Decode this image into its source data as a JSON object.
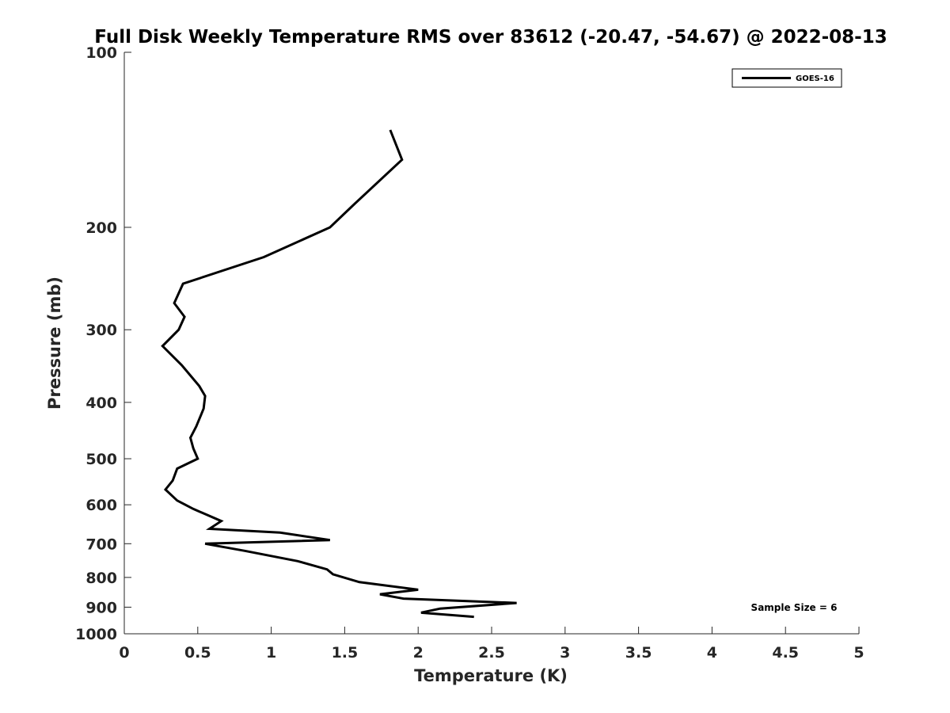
{
  "chart_data": {
    "type": "line",
    "title": "Full Disk Weekly Temperature RMS over 83612 (-20.47, -54.67) @ 2022-08-13",
    "xlabel": "Temperature (K)",
    "ylabel": "Pressure (mb)",
    "xlim": [
      0,
      5
    ],
    "ylim": [
      100,
      1000
    ],
    "y_scale": "log",
    "y_reversed": true,
    "x_ticks": [
      0,
      0.5,
      1,
      1.5,
      2,
      2.5,
      3,
      3.5,
      4,
      4.5,
      5
    ],
    "x_tick_labels": [
      "0",
      "0.5",
      "1",
      "1.5",
      "2",
      "2.5",
      "3",
      "3.5",
      "4",
      "4.5",
      "5"
    ],
    "y_ticks": [
      100,
      200,
      300,
      400,
      500,
      600,
      700,
      800,
      900,
      1000
    ],
    "y_tick_labels": [
      "100",
      "200",
      "300",
      "400",
      "500",
      "600",
      "700",
      "800",
      "900",
      "1000"
    ],
    "grid": false,
    "legend_position": "top-right",
    "annotation": "Sample Size = 6",
    "series": [
      {
        "name": "GOES-16",
        "color": "#000000",
        "points": [
          {
            "x": 1.81,
            "p": 136
          },
          {
            "x": 1.89,
            "p": 153
          },
          {
            "x": 1.57,
            "p": 182
          },
          {
            "x": 1.4,
            "p": 200
          },
          {
            "x": 0.95,
            "p": 225
          },
          {
            "x": 0.4,
            "p": 250
          },
          {
            "x": 0.34,
            "p": 270
          },
          {
            "x": 0.41,
            "p": 285
          },
          {
            "x": 0.37,
            "p": 300
          },
          {
            "x": 0.26,
            "p": 320
          },
          {
            "x": 0.39,
            "p": 345
          },
          {
            "x": 0.51,
            "p": 375
          },
          {
            "x": 0.55,
            "p": 390
          },
          {
            "x": 0.54,
            "p": 410
          },
          {
            "x": 0.49,
            "p": 440
          },
          {
            "x": 0.45,
            "p": 460
          },
          {
            "x": 0.47,
            "p": 480
          },
          {
            "x": 0.5,
            "p": 500
          },
          {
            "x": 0.36,
            "p": 520
          },
          {
            "x": 0.33,
            "p": 545
          },
          {
            "x": 0.28,
            "p": 565
          },
          {
            "x": 0.36,
            "p": 590
          },
          {
            "x": 0.47,
            "p": 610
          },
          {
            "x": 0.66,
            "p": 640
          },
          {
            "x": 0.58,
            "p": 660
          },
          {
            "x": 1.06,
            "p": 670
          },
          {
            "x": 1.4,
            "p": 690
          },
          {
            "x": 0.55,
            "p": 700
          },
          {
            "x": 0.82,
            "p": 720
          },
          {
            "x": 1.18,
            "p": 750
          },
          {
            "x": 1.38,
            "p": 775
          },
          {
            "x": 1.42,
            "p": 790
          },
          {
            "x": 1.6,
            "p": 815
          },
          {
            "x": 2.0,
            "p": 840
          },
          {
            "x": 1.74,
            "p": 855
          },
          {
            "x": 1.9,
            "p": 870
          },
          {
            "x": 2.67,
            "p": 885
          },
          {
            "x": 2.15,
            "p": 905
          },
          {
            "x": 2.02,
            "p": 920
          },
          {
            "x": 2.38,
            "p": 935
          }
        ]
      }
    ]
  }
}
